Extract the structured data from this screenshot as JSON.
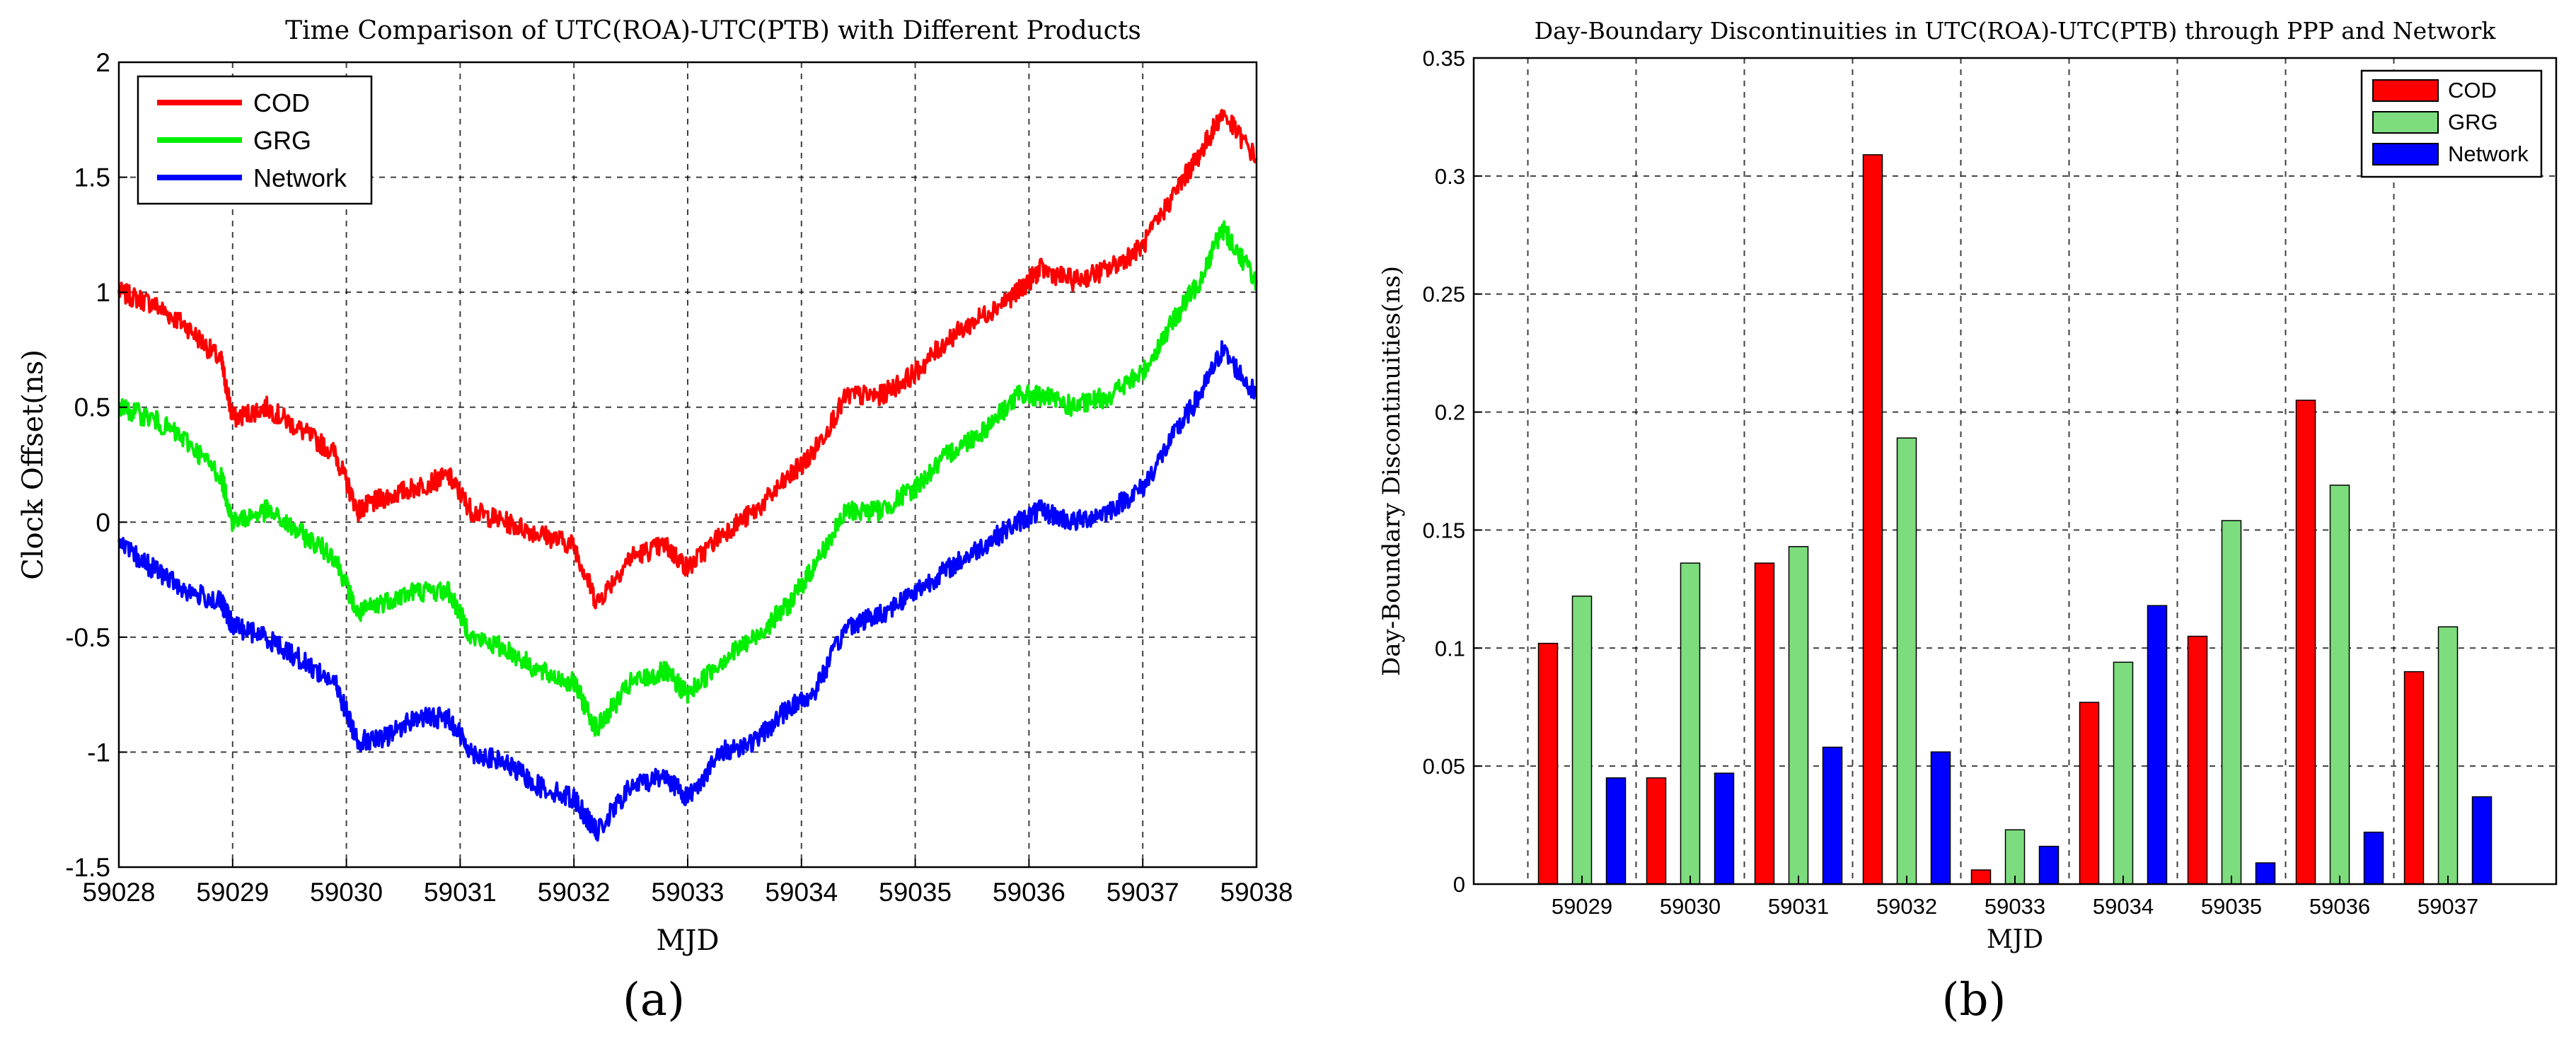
{
  "chart_data": [
    {
      "type": "line",
      "title": "Time Comparison of UTC(ROA)-UTC(PTB) with Different Products",
      "xlabel": "MJD",
      "ylabel": "Clock Offset(ns)",
      "xlim": [
        59028,
        59038
      ],
      "ylim": [
        -1.5,
        2
      ],
      "xticks": [
        59028,
        59029,
        59030,
        59031,
        59032,
        59033,
        59034,
        59035,
        59036,
        59037,
        59038
      ],
      "yticks": [
        -1.5,
        -1,
        -0.5,
        0,
        0.5,
        1,
        1.5,
        2
      ],
      "grid": true,
      "legend_position": "top-left",
      "caption": "(a)",
      "series": [
        {
          "name": "COD",
          "color": "#ff0000",
          "x": [
            59028.0,
            59028.3,
            59028.6,
            59028.9,
            59029.0,
            59029.3,
            59029.6,
            59029.9,
            59030.1,
            59030.3,
            59030.6,
            59030.9,
            59031.1,
            59031.4,
            59031.7,
            59032.0,
            59032.2,
            59032.5,
            59032.8,
            59033.0,
            59033.3,
            59033.6,
            59033.9,
            59034.1,
            59034.4,
            59034.7,
            59035.0,
            59035.3,
            59035.6,
            59035.9,
            59036.1,
            59036.4,
            59036.7,
            59037.0,
            59037.3,
            59037.5,
            59037.7,
            59038.0
          ],
          "values": [
            1.0,
            0.95,
            0.85,
            0.7,
            0.45,
            0.5,
            0.4,
            0.3,
            0.05,
            0.1,
            0.15,
            0.2,
            0.05,
            0.0,
            -0.05,
            -0.1,
            -0.35,
            -0.15,
            -0.1,
            -0.2,
            -0.05,
            0.05,
            0.2,
            0.3,
            0.55,
            0.55,
            0.65,
            0.8,
            0.9,
            1.0,
            1.1,
            1.05,
            1.1,
            1.2,
            1.45,
            1.6,
            1.78,
            1.58
          ]
        },
        {
          "name": "GRG",
          "color": "#00ee00",
          "x": [
            59028.0,
            59028.3,
            59028.6,
            59028.9,
            59029.0,
            59029.3,
            59029.6,
            59029.9,
            59030.1,
            59030.3,
            59030.6,
            59030.9,
            59031.1,
            59031.4,
            59031.7,
            59032.0,
            59032.2,
            59032.5,
            59032.8,
            59033.0,
            59033.3,
            59033.6,
            59033.9,
            59034.1,
            59034.4,
            59034.7,
            59035.0,
            59035.3,
            59035.6,
            59035.9,
            59036.1,
            59036.4,
            59036.7,
            59037.0,
            59037.3,
            59037.5,
            59037.7,
            59038.0
          ],
          "values": [
            0.5,
            0.45,
            0.35,
            0.2,
            0.0,
            0.05,
            -0.05,
            -0.15,
            -0.4,
            -0.35,
            -0.3,
            -0.3,
            -0.5,
            -0.55,
            -0.65,
            -0.7,
            -0.9,
            -0.7,
            -0.65,
            -0.75,
            -0.6,
            -0.5,
            -0.35,
            -0.2,
            0.05,
            0.05,
            0.15,
            0.3,
            0.4,
            0.55,
            0.55,
            0.5,
            0.55,
            0.65,
            0.9,
            1.05,
            1.28,
            1.05
          ]
        },
        {
          "name": "Network",
          "color": "#0000ff",
          "x": [
            59028.0,
            59028.3,
            59028.6,
            59028.9,
            59029.0,
            59029.3,
            59029.6,
            59029.9,
            59030.1,
            59030.3,
            59030.6,
            59030.9,
            59031.1,
            59031.4,
            59031.7,
            59032.0,
            59032.2,
            59032.5,
            59032.8,
            59033.0,
            59033.3,
            59033.6,
            59033.9,
            59034.1,
            59034.4,
            59034.7,
            59035.0,
            59035.3,
            59035.6,
            59035.9,
            59036.1,
            59036.4,
            59036.7,
            59037.0,
            59037.3,
            59037.5,
            59037.7,
            59038.0
          ],
          "values": [
            -0.1,
            -0.2,
            -0.3,
            -0.35,
            -0.45,
            -0.5,
            -0.6,
            -0.7,
            -0.95,
            -0.95,
            -0.85,
            -0.85,
            -1.0,
            -1.05,
            -1.15,
            -1.2,
            -1.35,
            -1.15,
            -1.1,
            -1.2,
            -1.0,
            -0.95,
            -0.8,
            -0.75,
            -0.45,
            -0.4,
            -0.3,
            -0.2,
            -0.1,
            0.0,
            0.05,
            0.0,
            0.05,
            0.15,
            0.4,
            0.55,
            0.75,
            0.55
          ]
        }
      ]
    },
    {
      "type": "bar",
      "title": "Day-Boundary Discontinuities in UTC(ROA)-UTC(PTB) through PPP and Network",
      "xlabel": "MJD",
      "ylabel": "Day-Boundary Discontinuities(ns)",
      "ylim": [
        0,
        0.35
      ],
      "yticks": [
        0,
        0.05,
        0.1,
        0.15,
        0.2,
        0.25,
        0.3,
        0.35
      ],
      "grid": true,
      "legend_position": "top-right",
      "caption": "(b)",
      "categories": [
        "59029",
        "59030",
        "59031",
        "59032",
        "59033",
        "59034",
        "59035",
        "59036",
        "59037"
      ],
      "series": [
        {
          "name": "COD",
          "color": "#ff0000",
          "values": [
            0.102,
            0.045,
            0.136,
            0.309,
            0.006,
            0.077,
            0.105,
            0.205,
            0.09
          ]
        },
        {
          "name": "GRG",
          "color": "#7ddc7d",
          "values": [
            0.122,
            0.136,
            0.143,
            0.189,
            0.023,
            0.094,
            0.154,
            0.169,
            0.109
          ]
        },
        {
          "name": "Network",
          "color": "#0000ff",
          "values": [
            0.045,
            0.047,
            0.058,
            0.056,
            0.016,
            0.118,
            0.009,
            0.022,
            0.037
          ]
        }
      ]
    }
  ]
}
